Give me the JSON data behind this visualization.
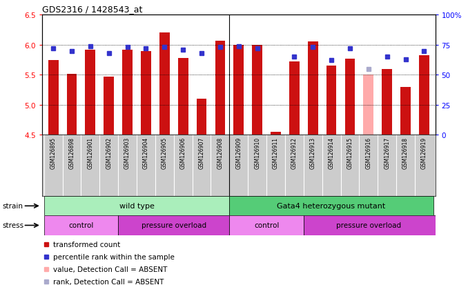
{
  "title": "GDS2316 / 1428543_at",
  "samples": [
    "GSM126895",
    "GSM126898",
    "GSM126901",
    "GSM126902",
    "GSM126903",
    "GSM126904",
    "GSM126905",
    "GSM126906",
    "GSM126907",
    "GSM126908",
    "GSM126909",
    "GSM126910",
    "GSM126911",
    "GSM126912",
    "GSM126913",
    "GSM126914",
    "GSM126915",
    "GSM126916",
    "GSM126917",
    "GSM126918",
    "GSM126919"
  ],
  "bar_values": [
    5.75,
    5.52,
    5.92,
    5.47,
    5.92,
    5.9,
    6.2,
    5.78,
    5.1,
    6.07,
    6.0,
    6.0,
    4.55,
    5.72,
    6.05,
    5.65,
    5.77,
    5.5,
    5.6,
    5.3,
    5.82
  ],
  "rank_values": [
    72,
    70,
    74,
    68,
    73,
    72,
    73,
    71,
    68,
    73,
    74,
    72,
    null,
    65,
    73,
    62,
    72,
    55,
    65,
    63,
    70
  ],
  "absent_bar": [
    false,
    false,
    false,
    false,
    false,
    false,
    false,
    false,
    false,
    false,
    false,
    false,
    false,
    false,
    false,
    false,
    false,
    true,
    false,
    false,
    false
  ],
  "absent_rank": [
    false,
    false,
    false,
    false,
    false,
    false,
    false,
    false,
    false,
    false,
    false,
    false,
    true,
    false,
    false,
    false,
    false,
    true,
    false,
    false,
    false
  ],
  "ylim_left": [
    4.5,
    6.5
  ],
  "ylim_right": [
    0,
    100
  ],
  "bar_color": "#cc1111",
  "absent_bar_color": "#ffaaaa",
  "rank_color": "#3333cc",
  "absent_rank_color": "#aaaacc",
  "yticks_left": [
    4.5,
    5.0,
    5.5,
    6.0,
    6.5
  ],
  "yticks_right": [
    0,
    25,
    50,
    75,
    100
  ],
  "ytick_labels_right": [
    "0",
    "25",
    "50",
    "75",
    "100%"
  ],
  "wt_color": "#aaeebb",
  "mut_color": "#55cc77",
  "ctrl_color": "#ee88ee",
  "po_color": "#cc44cc",
  "xtick_bg": "#cccccc",
  "legend_items": [
    {
      "label": "transformed count",
      "color": "#cc1111"
    },
    {
      "label": "percentile rank within the sample",
      "color": "#3333cc"
    },
    {
      "label": "value, Detection Call = ABSENT",
      "color": "#ffaaaa"
    },
    {
      "label": "rank, Detection Call = ABSENT",
      "color": "#aaaacc"
    }
  ]
}
